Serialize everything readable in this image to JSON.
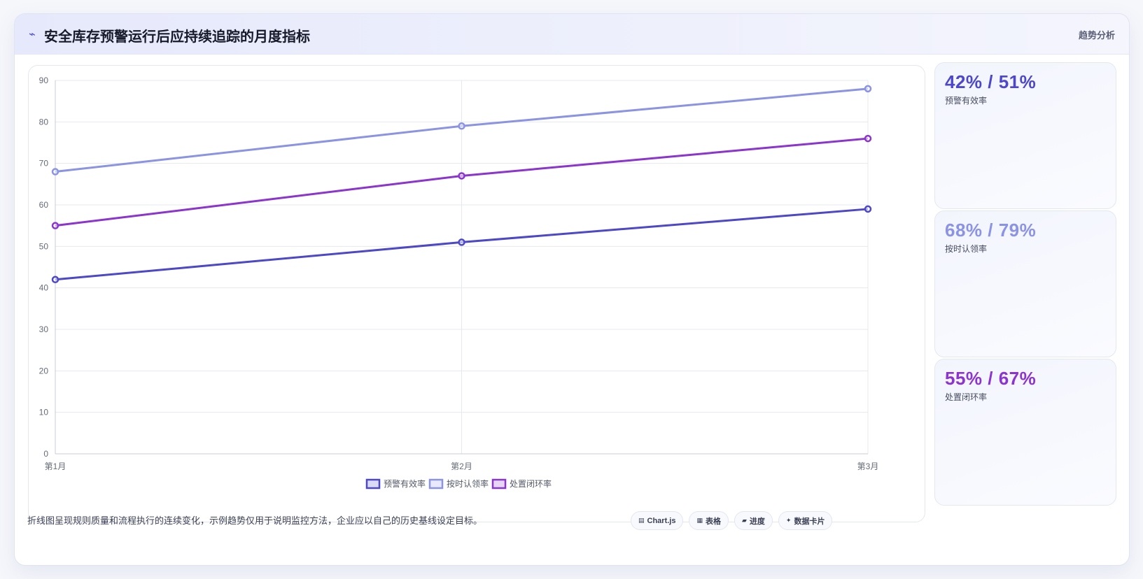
{
  "header": {
    "title_icon": "⌁",
    "title": "安全库存预警运行后应持续追踪的月度指标",
    "tag": "趋势分析"
  },
  "chart_data": {
    "type": "line",
    "categories": [
      "第1月",
      "第2月",
      "第3月"
    ],
    "series": [
      {
        "name": "预警有效率",
        "values": [
          42,
          51,
          59
        ],
        "color": "#4d47c9"
      },
      {
        "name": "按时认领率",
        "values": [
          68,
          79,
          88
        ],
        "color": "#8b93e4"
      },
      {
        "name": "处置闭环率",
        "values": [
          55,
          67,
          76
        ],
        "color": "#8c34cf"
      }
    ],
    "ylim": [
      0,
      90
    ],
    "yticks": [
      0,
      10,
      20,
      30,
      40,
      50,
      60,
      70,
      80,
      90
    ],
    "grid": true,
    "legend": "bottom-center"
  },
  "stats": [
    {
      "value": "42% / 51%",
      "label": "预警有效率",
      "color": "#4d47c9"
    },
    {
      "value": "68% / 79%",
      "label": "按时认领率",
      "color": "#8b93e4"
    },
    {
      "value": "55% / 67%",
      "label": "处置闭环率",
      "color": "#8c34cf"
    }
  ],
  "footer": {
    "text": "折线图呈现规则质量和流程执行的连续变化，示例趋势仅用于说明监控方法，企业应以自己的历史基线设定目标。",
    "chips": [
      {
        "icon": "▤",
        "label": "Chart.js"
      },
      {
        "icon": "▦",
        "label": "表格"
      },
      {
        "icon": "▰",
        "label": "进度"
      },
      {
        "icon": "✦",
        "label": "数据卡片"
      }
    ]
  }
}
